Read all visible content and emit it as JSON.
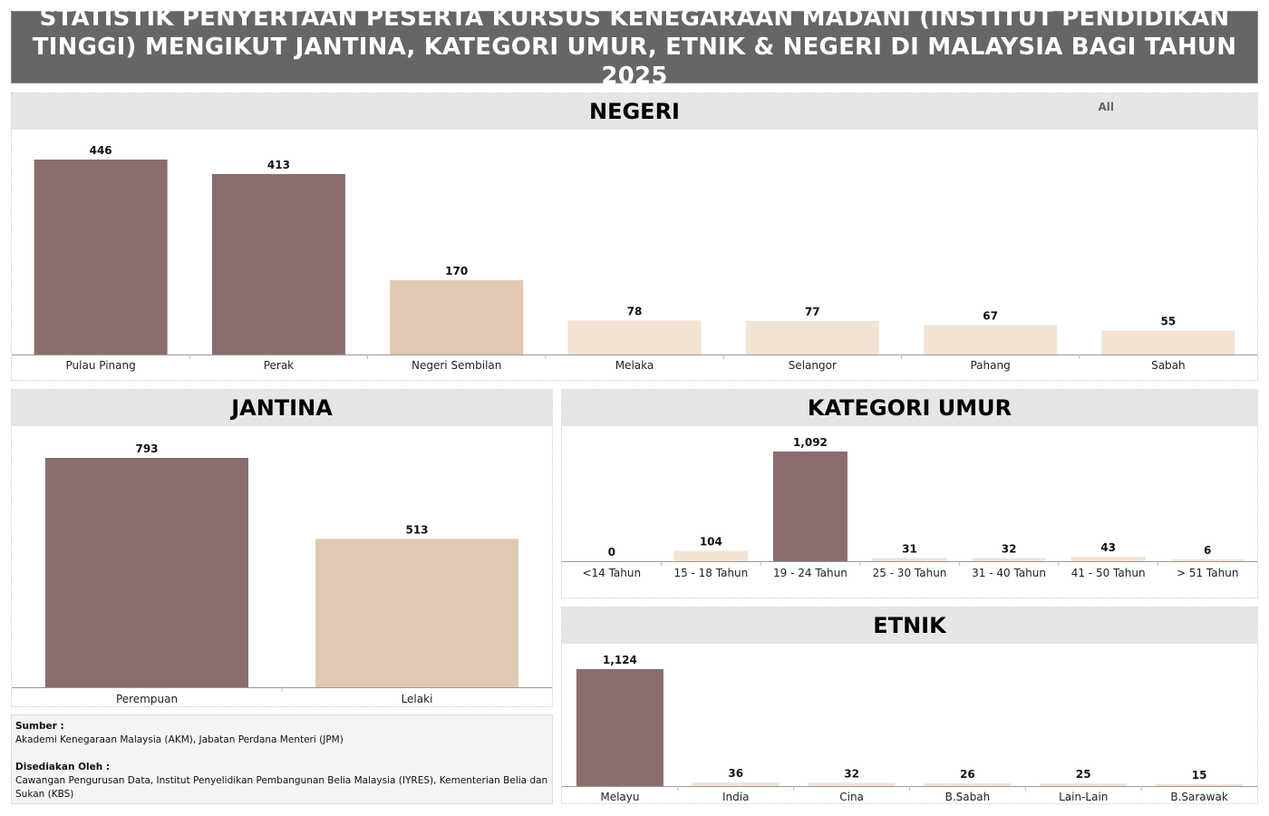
{
  "title": {
    "line1": "STATISTIK PENYERTAAN PESERTA KURSUS KENEGARAAN MADANI (INSTITUT PENDIDIKAN",
    "line2": "TINGGI) MENGIKUT JANTINA, KATEGORI UMUR, ETNIK & NEGERI DI MALAYSIA BAGI TAHUN 2025"
  },
  "filter": {
    "label": "All"
  },
  "colors": {
    "dark": "#8b6d6d",
    "mid": "#e0c8b2",
    "light": "#f2e3d5",
    "title_bg": "#666666",
    "header_bg": "#e6e6e6"
  },
  "chart_data": [
    {
      "id": "negeri",
      "type": "bar",
      "title": "NEGERI",
      "categories": [
        "Pulau Pinang",
        "Perak",
        "Negeri Sembilan",
        "Melaka",
        "Selangor",
        "Pahang",
        "Sabah"
      ],
      "values": [
        446,
        413,
        170,
        78,
        77,
        67,
        55
      ],
      "value_labels": [
        "446",
        "413",
        "170",
        "78",
        "77",
        "67",
        "55"
      ],
      "ylim": [
        0,
        446
      ]
    },
    {
      "id": "jantina",
      "type": "bar",
      "title": "JANTINA",
      "categories": [
        "Perempuan",
        "Lelaki"
      ],
      "values": [
        793,
        513
      ],
      "value_labels": [
        "793",
        "513"
      ],
      "ylim": [
        0,
        793
      ]
    },
    {
      "id": "umur",
      "type": "bar",
      "title": "KATEGORI UMUR",
      "categories": [
        "<14 Tahun",
        "15 - 18 Tahun",
        "19 - 24 Tahun",
        "25 - 30 Tahun",
        "31 - 40 Tahun",
        "41 - 50 Tahun",
        "> 51 Tahun"
      ],
      "values": [
        0,
        104,
        1092,
        31,
        32,
        43,
        6
      ],
      "value_labels": [
        "0",
        "104",
        "1,092",
        "31",
        "32",
        "43",
        "6"
      ],
      "ylim": [
        0,
        1092
      ]
    },
    {
      "id": "etnik",
      "type": "bar",
      "title": "ETNIK",
      "categories": [
        "Melayu",
        "India",
        "Cina",
        "B.Sabah",
        "Lain-Lain",
        "B.Sarawak"
      ],
      "values": [
        1124,
        36,
        32,
        26,
        25,
        15
      ],
      "value_labels": [
        "1,124",
        "36",
        "32",
        "26",
        "25",
        "15"
      ],
      "ylim": [
        0,
        1124
      ]
    }
  ],
  "source": {
    "sumber_heading": "Sumber :",
    "sumber_text": "Akademi Kenegaraan Malaysia (AKM), Jabatan Perdana Menteri (JPM)",
    "disediakan_heading": "Disediakan Oleh :",
    "disediakan_text": "Cawangan Pengurusan Data, Institut Penyelidikan Pembangunan Belia Malaysia (IYRES), Kementerian Belia dan Sukan (KBS)"
  }
}
